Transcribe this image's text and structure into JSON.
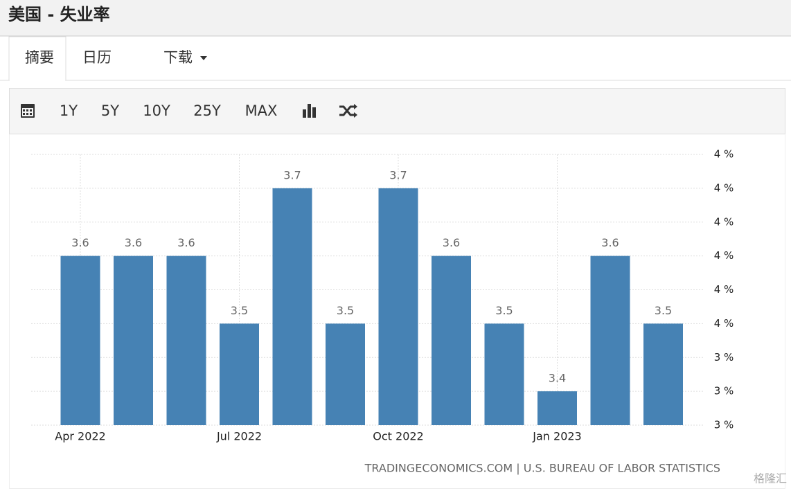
{
  "header": {
    "title": "美国 - 失业率"
  },
  "tabs": [
    "摘要",
    "日历",
    "下载"
  ],
  "toolbar": {
    "ranges": [
      "1Y",
      "5Y",
      "10Y",
      "25Y",
      "MAX"
    ]
  },
  "chart_data": {
    "type": "bar",
    "categories": [
      "Apr 2022",
      null,
      null,
      "Jul 2022",
      null,
      null,
      "Oct 2022",
      null,
      null,
      "Jan 2023",
      null,
      null
    ],
    "values": [
      3.6,
      3.6,
      3.6,
      3.5,
      3.7,
      3.5,
      3.7,
      3.6,
      3.5,
      3.4,
      3.6,
      3.5
    ],
    "color": "#4682b4",
    "ylim": [
      3.35,
      3.75
    ],
    "yticks": [
      {
        "value": 3.35,
        "label": "3 %"
      },
      {
        "value": 3.4,
        "label": "3 %"
      },
      {
        "value": 3.45,
        "label": "3 %"
      },
      {
        "value": 3.5,
        "label": "4 %"
      },
      {
        "value": 3.55,
        "label": "4 %"
      },
      {
        "value": 3.6,
        "label": "4 %"
      },
      {
        "value": 3.65,
        "label": "4 %"
      },
      {
        "value": 3.7,
        "label": "4 %"
      },
      {
        "value": 3.75,
        "label": "4 %"
      }
    ],
    "grid": true
  },
  "source": "TRADINGECONOMICS.COM | U.S. BUREAU OF LABOR STATISTICS",
  "watermark": "格隆汇"
}
